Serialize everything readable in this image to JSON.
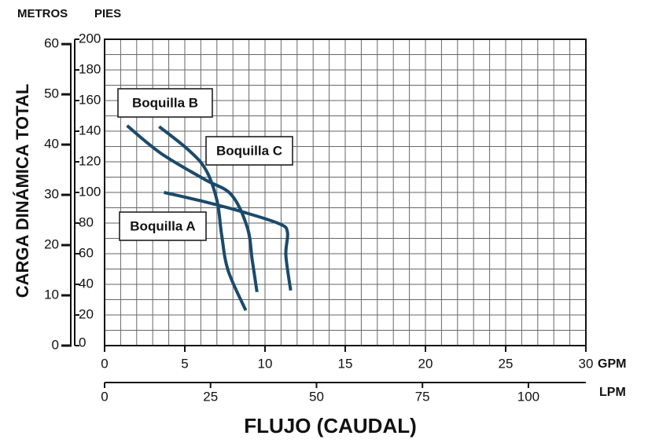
{
  "chart_data": {
    "type": "line",
    "y2_label": "METROS",
    "y_label": "PIES",
    "y_title": "CARGA DINÁMICA TOTAL",
    "x_label": "GPM",
    "x2_label": "LPM",
    "x_title": "FLUJO (CAUDAL)",
    "xlim": [
      0,
      30
    ],
    "xticks": [
      0,
      5,
      10,
      15,
      20,
      25,
      30
    ],
    "x2lim": [
      0,
      113.56
    ],
    "x2ticks": [
      0,
      25,
      50,
      75,
      100
    ],
    "ylim": [
      0,
      200
    ],
    "yticks": [
      0,
      20,
      40,
      60,
      80,
      100,
      120,
      140,
      160,
      180,
      200
    ],
    "y2lim": [
      0,
      60.96
    ],
    "y2ticks": [
      0,
      10,
      20,
      30,
      40,
      50,
      60
    ],
    "grid": {
      "x_step": 1,
      "y_step": 10
    },
    "series": [
      {
        "name": "Boquilla B",
        "color": "#1b4a6b",
        "x": [
          1.4,
          3.5,
          6.2,
          7.9,
          8.9,
          9.2,
          9.5
        ],
        "values": [
          143.6,
          125.6,
          108.7,
          98.5,
          77,
          56,
          35
        ]
      },
      {
        "name": "Boquilla C",
        "color": "#1b4a6b",
        "x": [
          3.4,
          5.2,
          6.3,
          7.0,
          7.3,
          7.7,
          8.8
        ],
        "values": [
          143,
          128,
          115,
          95,
          72,
          49,
          23
        ]
      },
      {
        "name": "Boquilla A",
        "color": "#1b4a6b",
        "x": [
          3.7,
          6.2,
          8.7,
          10.9,
          11.4,
          11.3,
          11.6
        ],
        "values": [
          100,
          94,
          87,
          79.5,
          74,
          59,
          36
        ]
      }
    ]
  }
}
